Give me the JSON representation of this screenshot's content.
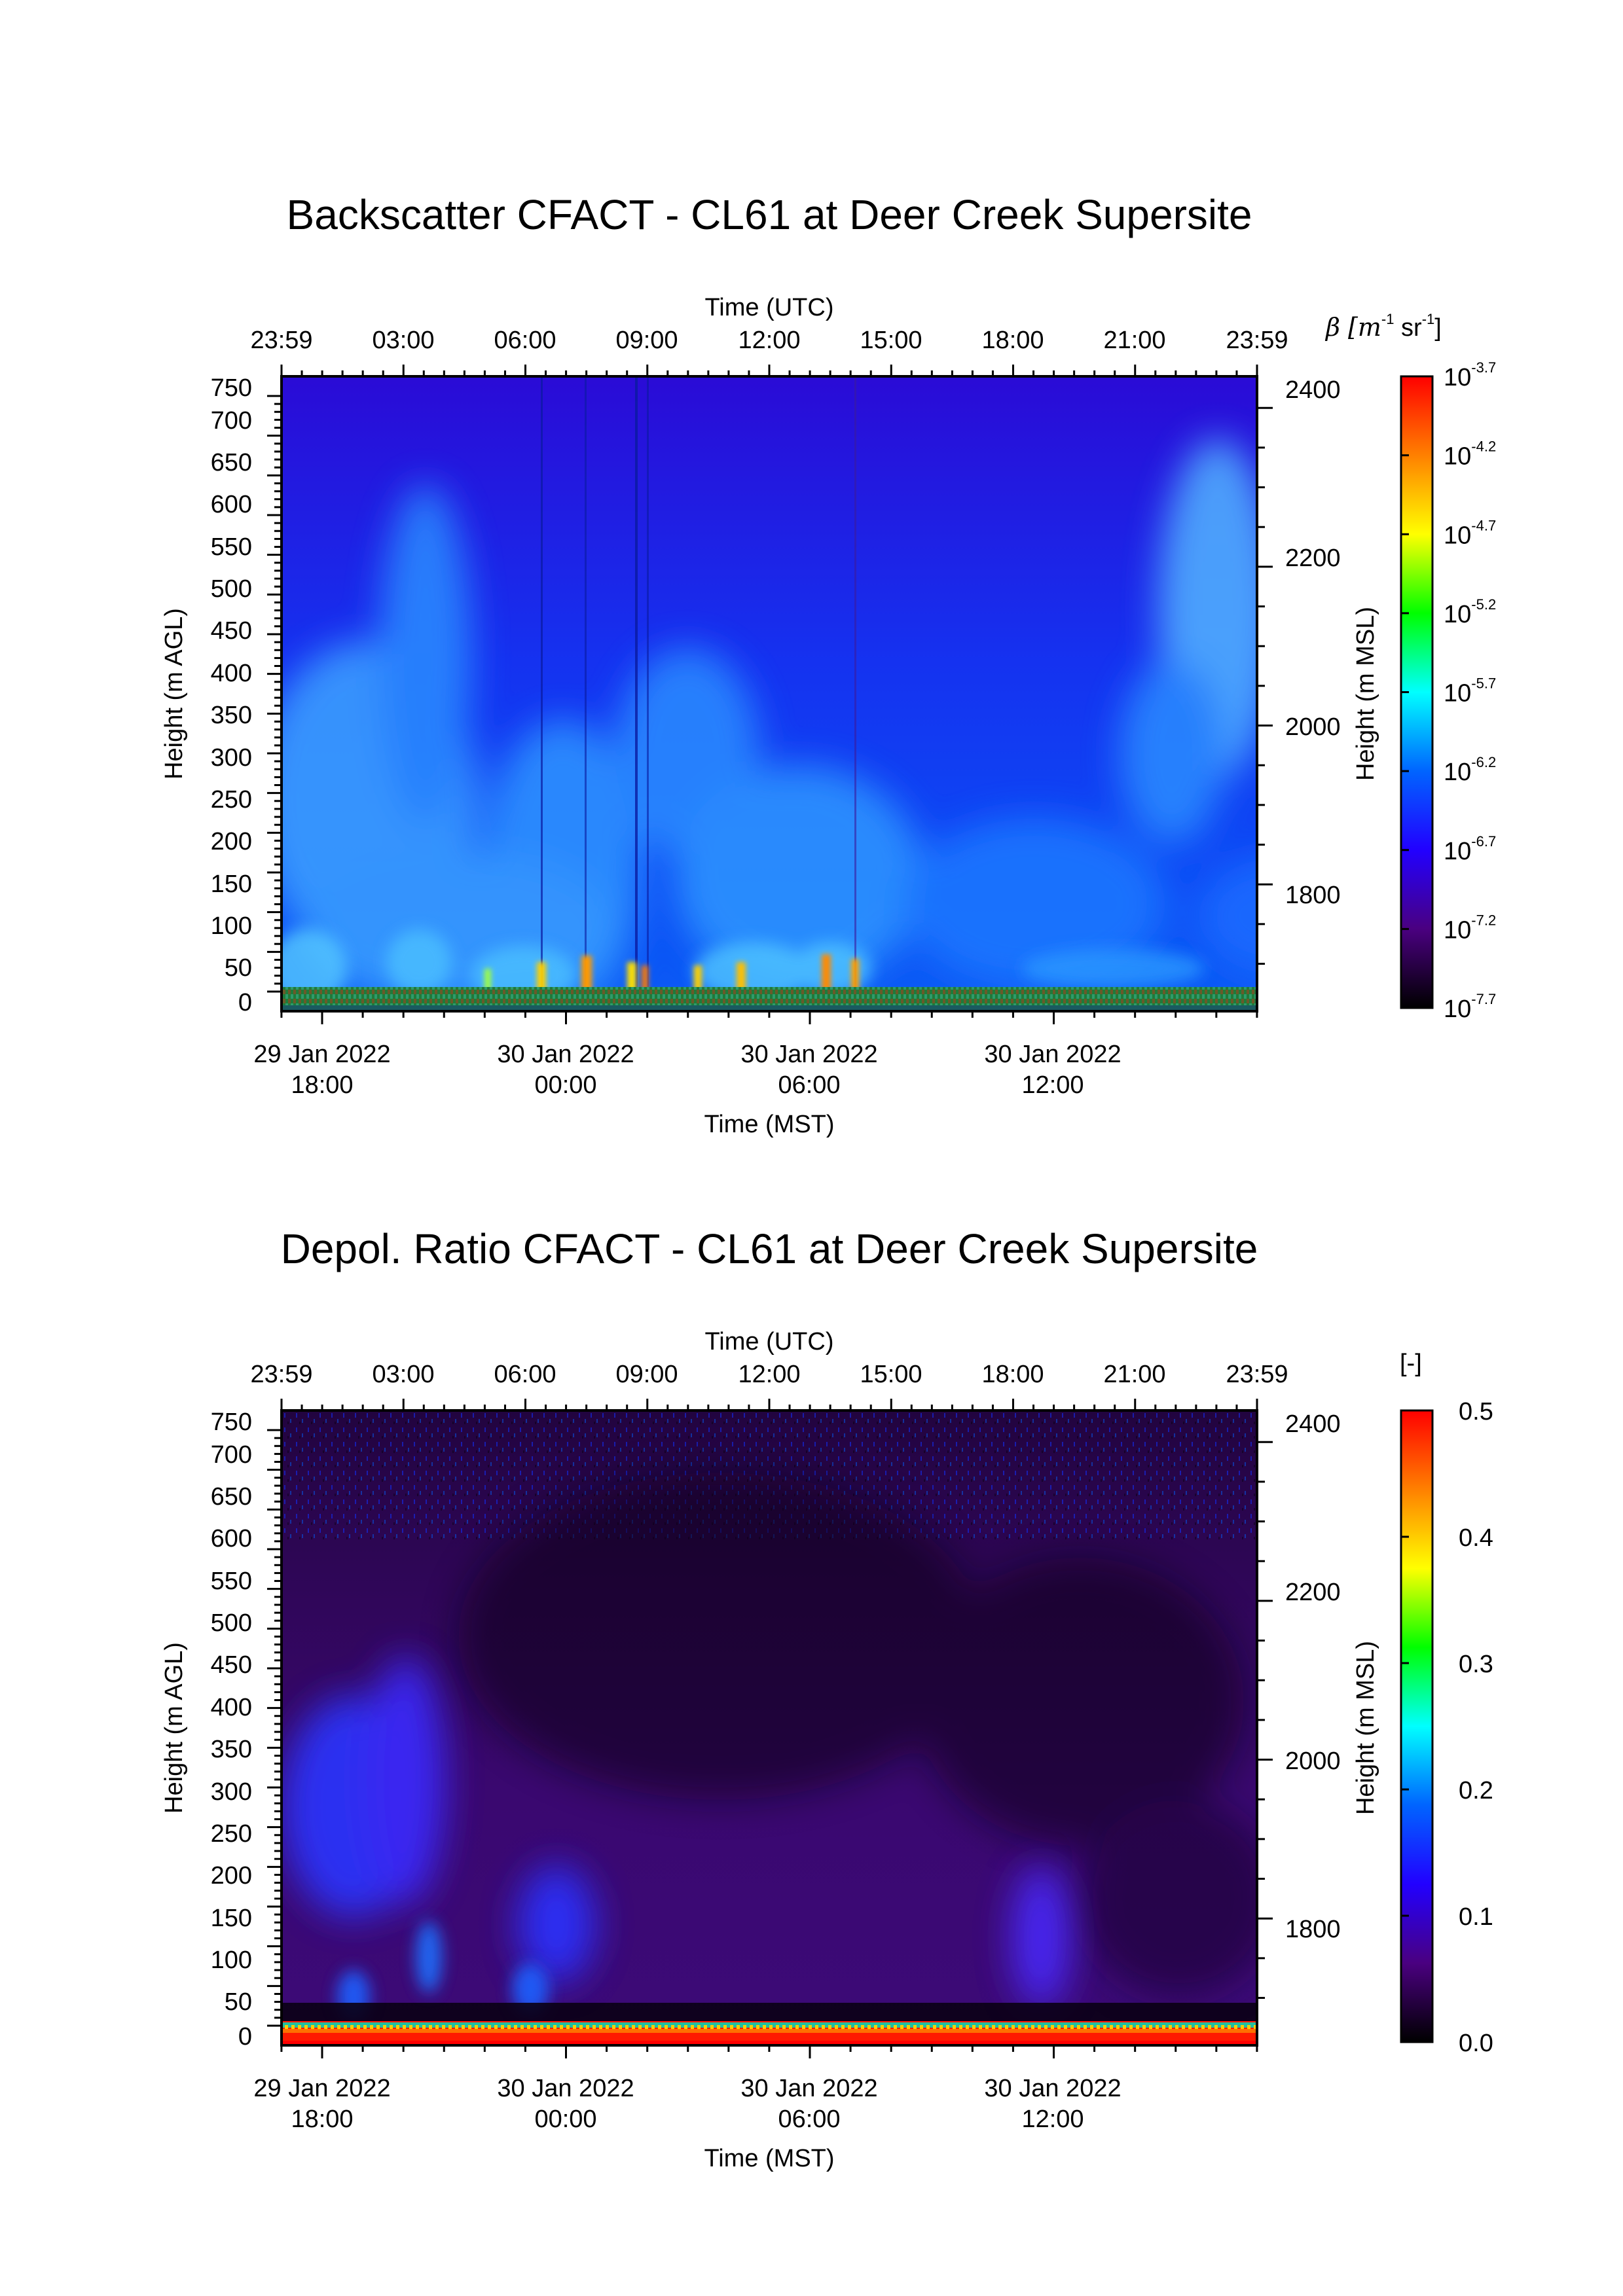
{
  "colors": {
    "background": "#ffffff",
    "rainbow_colormap": [
      "#000000",
      "#4a0080",
      "#2200ff",
      "#0064ff",
      "#00ffff",
      "#00ff00",
      "#ffff00",
      "#ff8000",
      "#ff0000"
    ]
  },
  "chart_data": [
    {
      "type": "heatmap",
      "title": "Backscatter CFACT - CL61 at Deer Creek Supersite",
      "xlabel": "Time (MST)",
      "x2label": "Time (UTC)",
      "ylabel": "Height (m AGL)",
      "y2label": "Height (m MSL)",
      "x_utc_ticks": [
        "23:59",
        "03:00",
        "06:00",
        "09:00",
        "12:00",
        "15:00",
        "18:00",
        "21:00",
        "23:59"
      ],
      "x_mst_ticks": [
        {
          "date": "29 Jan 2022",
          "time": "18:00"
        },
        {
          "date": "30 Jan 2022",
          "time": "00:00"
        },
        {
          "date": "30 Jan 2022",
          "time": "06:00"
        },
        {
          "date": "30 Jan 2022",
          "time": "12:00"
        }
      ],
      "y_agl_ticks": [
        "750",
        "700",
        "650",
        "600",
        "550",
        "500",
        "450",
        "400",
        "350",
        "300",
        "250",
        "200",
        "150",
        "100",
        "50",
        "0"
      ],
      "y_msl_ticks": [
        "2400",
        "2200",
        "2000",
        "1800"
      ],
      "ylim": [
        0,
        750
      ],
      "y2lim": [
        1665,
        2415
      ],
      "colorbar": {
        "label_prefix": "β [m",
        "label_exp1": "-1",
        "label_mid": " sr",
        "label_exp2": "-1",
        "label_suffix": "]",
        "scale": "log",
        "tick_base": "10",
        "tick_exponents": [
          "-3.7",
          "-4.2",
          "-4.7",
          "-5.2",
          "-5.7",
          "-6.2",
          "-6.7",
          "-7.2",
          "-7.7"
        ],
        "range": [
          -7.7,
          -3.7
        ]
      }
    },
    {
      "type": "heatmap",
      "title": "Depol. Ratio CFACT - CL61 at Deer Creek Supersite",
      "xlabel": "Time (MST)",
      "x2label": "Time (UTC)",
      "ylabel": "Height (m AGL)",
      "y2label": "Height (m MSL)",
      "x_utc_ticks": [
        "23:59",
        "03:00",
        "06:00",
        "09:00",
        "12:00",
        "15:00",
        "18:00",
        "21:00",
        "23:59"
      ],
      "x_mst_ticks": [
        {
          "date": "29 Jan 2022",
          "time": "18:00"
        },
        {
          "date": "30 Jan 2022",
          "time": "00:00"
        },
        {
          "date": "30 Jan 2022",
          "time": "06:00"
        },
        {
          "date": "30 Jan 2022",
          "time": "12:00"
        }
      ],
      "y_agl_ticks": [
        "750",
        "700",
        "650",
        "600",
        "550",
        "500",
        "450",
        "400",
        "350",
        "300",
        "250",
        "200",
        "150",
        "100",
        "50",
        "0"
      ],
      "y_msl_ticks": [
        "2400",
        "2200",
        "2000",
        "1800"
      ],
      "ylim": [
        0,
        750
      ],
      "y2lim": [
        1665,
        2415
      ],
      "colorbar": {
        "label": "[-]",
        "scale": "linear",
        "ticks": [
          "0.5",
          "0.4",
          "0.3",
          "0.2",
          "0.1",
          "0.0"
        ],
        "range": [
          0.0,
          0.5
        ]
      }
    }
  ]
}
